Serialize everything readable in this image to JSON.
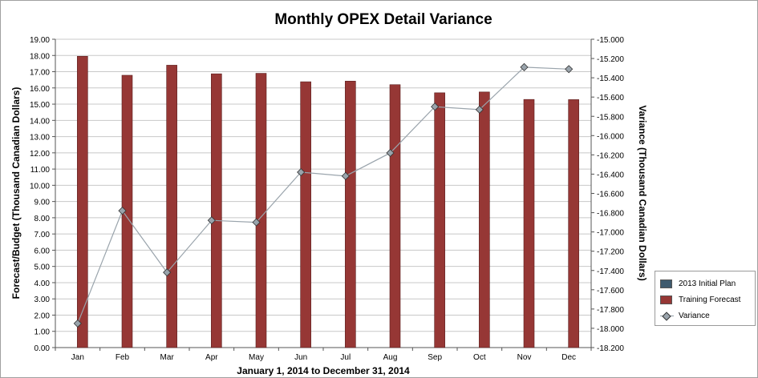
{
  "chart_data": {
    "type": "bar",
    "title": "Monthly OPEX Detail Variance",
    "xlabel": "January 1, 2014 to December 31, 2014",
    "ylabel": "Forecast/Budget (Thousand Canadian Dollars)",
    "y2label": "Variance (Thousand Canadian Dollars)",
    "categories": [
      "Jan",
      "Feb",
      "Mar",
      "Apr",
      "May",
      "Jun",
      "Jul",
      "Aug",
      "Sep",
      "Oct",
      "Nov",
      "Dec"
    ],
    "ylim": [
      0,
      19
    ],
    "y_ticks": [
      "0.00",
      "1.00",
      "2.00",
      "3.00",
      "4.00",
      "5.00",
      "6.00",
      "7.00",
      "8.00",
      "9.00",
      "10.00",
      "11.00",
      "12.00",
      "13.00",
      "14.00",
      "15.00",
      "16.00",
      "17.00",
      "18.00",
      "19.00"
    ],
    "y2lim": [
      -18200,
      -15000
    ],
    "y2_ticks": [
      "-15.000",
      "-15.200",
      "-15.400",
      "-15.600",
      "-15.800",
      "-16.000",
      "-16.200",
      "-16.400",
      "-16.600",
      "-16.800",
      "-17.000",
      "-17.200",
      "-17.400",
      "-17.600",
      "-17.800",
      "-18.000",
      "-18.200"
    ],
    "grid": true,
    "legend_position": "bottom-right",
    "series": [
      {
        "name": "2013 Initial Plan",
        "type": "bar",
        "axis": "left",
        "color": "#3e5a6e",
        "values": [
          0,
          0,
          0,
          0,
          0,
          0,
          0,
          0,
          0,
          0,
          0,
          0
        ]
      },
      {
        "name": "Training Forecast",
        "type": "bar",
        "axis": "left",
        "color": "#963735",
        "values": [
          17.95,
          16.78,
          17.4,
          16.87,
          16.9,
          16.38,
          16.42,
          16.2,
          15.7,
          15.75,
          15.29,
          15.28
        ]
      },
      {
        "name": "Variance",
        "type": "line",
        "axis": "right",
        "color": "#9aa4ac",
        "values": [
          -17.95,
          -16.78,
          -17.42,
          -16.88,
          -16.9,
          -16.38,
          -16.42,
          -16.18,
          -15.7,
          -15.73,
          -15.29,
          -15.31
        ]
      }
    ]
  }
}
